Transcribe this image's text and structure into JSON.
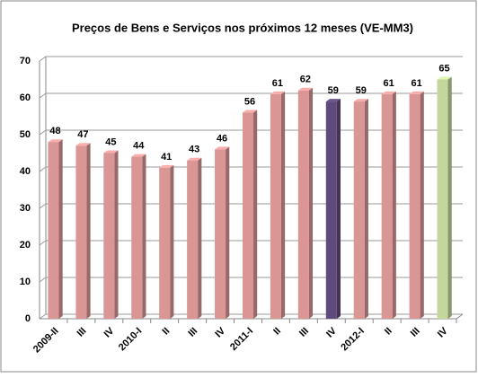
{
  "chart_data": {
    "type": "bar",
    "title": "Preços de Bens e Serviços  nos  próximos 12 meses (VE-MM3)",
    "categories": [
      "2009-II",
      "III",
      "IV",
      "2010-I",
      "II",
      "III",
      "IV",
      "2011-I",
      "II",
      "III",
      "IV",
      "2012-I",
      "II",
      "III",
      "IV"
    ],
    "values": [
      48,
      47,
      45,
      44,
      41,
      43,
      46,
      56,
      61,
      62,
      59,
      59,
      61,
      61,
      65
    ],
    "colors": [
      "#d99694",
      "#d99694",
      "#d99694",
      "#d99694",
      "#d99694",
      "#d99694",
      "#d99694",
      "#d99694",
      "#d99694",
      "#d99694",
      "#604a7b",
      "#d99694",
      "#d99694",
      "#d99694",
      "#c3d69b"
    ],
    "ylim": [
      0,
      70
    ],
    "yticks": [
      0,
      10,
      20,
      30,
      40,
      50,
      60,
      70
    ],
    "grid": true
  }
}
